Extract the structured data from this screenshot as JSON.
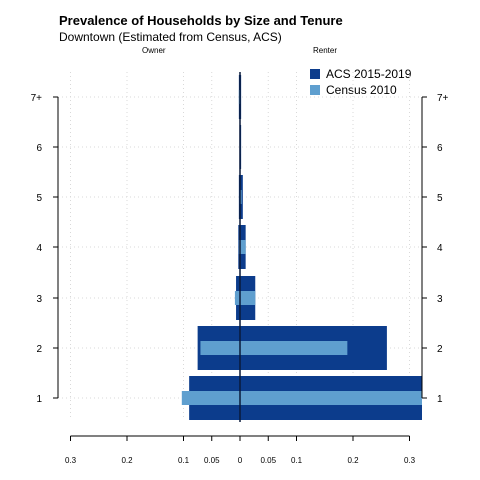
{
  "title": "Prevalence of Households by Size and Tenure",
  "subtitle": "Downtown (Estimated from Census, ACS)",
  "owner_label": "Owner",
  "renter_label": "Renter",
  "colors": {
    "acs": "#0c3c8c",
    "census": "#5f9fcf",
    "grid": "#d9d9d9",
    "axis": "#000000"
  },
  "chart_data": {
    "type": "bar",
    "orientation": "horizontal",
    "layout": "diverging",
    "categories": [
      "1",
      "2",
      "3",
      "4",
      "5",
      "6",
      "7+"
    ],
    "x_ticks": [
      -0.3,
      -0.2,
      -0.1,
      -0.05,
      0,
      0.05,
      0.1,
      0.2,
      0.3
    ],
    "x_tick_labels": [
      "0.3",
      "0.2",
      "0.1",
      "0.05",
      "0",
      "0.05",
      "0.1",
      "0.2",
      "0.3"
    ],
    "xlim": [
      -0.3,
      0.3
    ],
    "grid": true,
    "legend_position": "top-right",
    "series": [
      {
        "name": "ACS 2015-2019",
        "owner": [
          0.09,
          0.075,
          0.007,
          0.003,
          0.002,
          0.001,
          0.002
        ],
        "renter": [
          0.33,
          0.26,
          0.027,
          0.01,
          0.005,
          0.002,
          0.002
        ]
      },
      {
        "name": "Census 2010",
        "owner": [
          0.103,
          0.07,
          0.009,
          0.002,
          0.001,
          0.0005,
          0.002
        ],
        "renter": [
          0.33,
          0.19,
          0.027,
          0.01,
          0.003,
          0.001,
          0.001
        ]
      }
    ]
  }
}
